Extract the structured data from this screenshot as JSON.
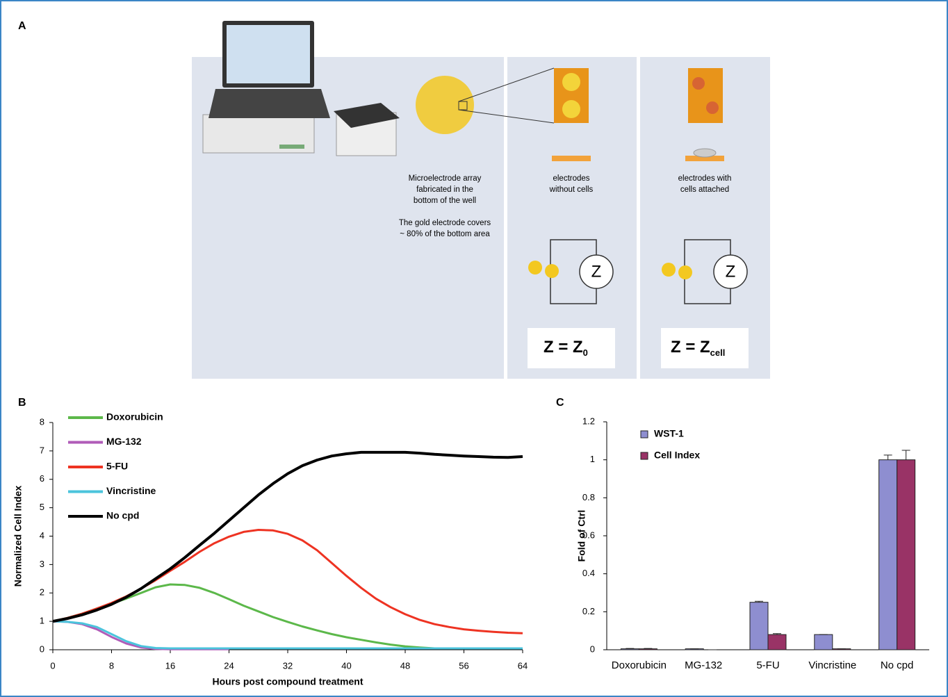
{
  "panel_labels": [
    "A",
    "B",
    "C"
  ],
  "panel_a": {
    "array_caption": [
      "Microelectrode array",
      "fabricated in the",
      "bottom of the well"
    ],
    "coverage_caption": [
      "The gold electrode covers",
      "~ 80% of the bottom area"
    ],
    "no_cells_caption": [
      "electrodes",
      "without cells"
    ],
    "cells_caption": [
      "electrodes with",
      "cells attached"
    ],
    "impedance_symbol": "Z",
    "equation_no_cells": {
      "text": "Z = Z",
      "subscript": "0"
    },
    "equation_cells": {
      "text": "Z = Z",
      "subscript": "cell"
    }
  },
  "chart_data": [
    {
      "type": "line",
      "x_label": "Hours post compound treatment",
      "y_label": "Normalized Cell Index",
      "x": [
        0,
        2,
        4,
        6,
        8,
        10,
        12,
        14,
        16,
        18,
        20,
        22,
        24,
        26,
        28,
        30,
        32,
        34,
        36,
        38,
        40,
        42,
        44,
        46,
        48,
        50,
        52,
        54,
        56,
        58,
        60,
        62,
        64
      ],
      "xlim": [
        0,
        64
      ],
      "xticks": [
        0,
        8,
        16,
        24,
        32,
        40,
        48,
        56,
        64
      ],
      "ylim": [
        0,
        8
      ],
      "yticks": [
        0,
        1,
        2,
        3,
        4,
        5,
        6,
        7,
        8
      ],
      "legend": "upper left",
      "series": [
        {
          "name": "Doxorubicin",
          "color": "#5cb84a",
          "values": [
            1,
            1.12,
            1.27,
            1.45,
            1.62,
            1.8,
            2.0,
            2.2,
            2.3,
            2.28,
            2.18,
            2.0,
            1.78,
            1.55,
            1.35,
            1.15,
            0.98,
            0.82,
            0.68,
            0.55,
            0.44,
            0.35,
            0.26,
            0.18,
            0.12,
            0.08,
            0.05,
            null,
            null,
            null,
            null,
            null,
            null
          ]
        },
        {
          "name": "MG-132",
          "color": "#b05cb8",
          "values": [
            1,
            0.98,
            0.9,
            0.72,
            0.45,
            0.22,
            0.08,
            0.03,
            0.02,
            0.02,
            0.02,
            0.02,
            0.02,
            null,
            null,
            null,
            null,
            null,
            null,
            null,
            null,
            null,
            null,
            null,
            null,
            null,
            null,
            null,
            null,
            null,
            null,
            null,
            null
          ]
        },
        {
          "name": "5-FU",
          "color": "#ee3322",
          "values": [
            1,
            1.12,
            1.27,
            1.45,
            1.65,
            1.88,
            2.15,
            2.45,
            2.78,
            3.1,
            3.45,
            3.75,
            3.98,
            4.15,
            4.22,
            4.2,
            4.08,
            3.85,
            3.5,
            3.05,
            2.6,
            2.18,
            1.8,
            1.5,
            1.25,
            1.05,
            0.9,
            0.8,
            0.72,
            0.67,
            0.63,
            0.6,
            0.58
          ]
        },
        {
          "name": "Vincristine",
          "color": "#4bc4dc",
          "values": [
            1,
            0.98,
            0.93,
            0.8,
            0.55,
            0.3,
            0.13,
            0.06,
            0.05,
            0.05,
            0.05,
            0.05,
            0.05,
            0.05,
            0.05,
            0.05,
            0.05,
            0.05,
            0.05,
            0.05,
            0.05,
            0.05,
            0.05,
            0.05,
            0.05,
            0.05,
            0.05,
            0.05,
            0.05,
            0.05,
            0.05,
            0.05,
            0.05
          ]
        },
        {
          "name": "No cpd",
          "color": "#000000",
          "values": [
            1,
            1.1,
            1.23,
            1.4,
            1.6,
            1.85,
            2.15,
            2.5,
            2.85,
            3.25,
            3.68,
            4.1,
            4.55,
            5.0,
            5.45,
            5.85,
            6.2,
            6.48,
            6.68,
            6.82,
            6.9,
            6.95,
            6.95,
            6.95,
            6.95,
            6.92,
            6.88,
            6.85,
            6.82,
            6.8,
            6.78,
            6.77,
            6.8
          ]
        }
      ]
    },
    {
      "type": "bar",
      "y_label": "Fold of Ctrl",
      "categories": [
        "Doxorubicin",
        "MG-132",
        "5-FU",
        "Vincristine",
        "No cpd"
      ],
      "ylim": [
        0,
        1.2
      ],
      "yticks": [
        0,
        0.2,
        0.4,
        0.6,
        0.8,
        1,
        1.2
      ],
      "legend": "upper left",
      "series": [
        {
          "name": "WST-1",
          "color": "#8e8ed0",
          "values": [
            0.005,
            0.005,
            0.25,
            0.08,
            1.0
          ],
          "errors": [
            0.002,
            0,
            0.005,
            0,
            0.025
          ]
        },
        {
          "name": "Cell Index",
          "color": "#993366",
          "values": [
            0.005,
            0,
            0.08,
            0.005,
            1.0
          ],
          "errors": [
            0.002,
            0,
            0.005,
            0,
            0.05
          ]
        }
      ]
    }
  ]
}
